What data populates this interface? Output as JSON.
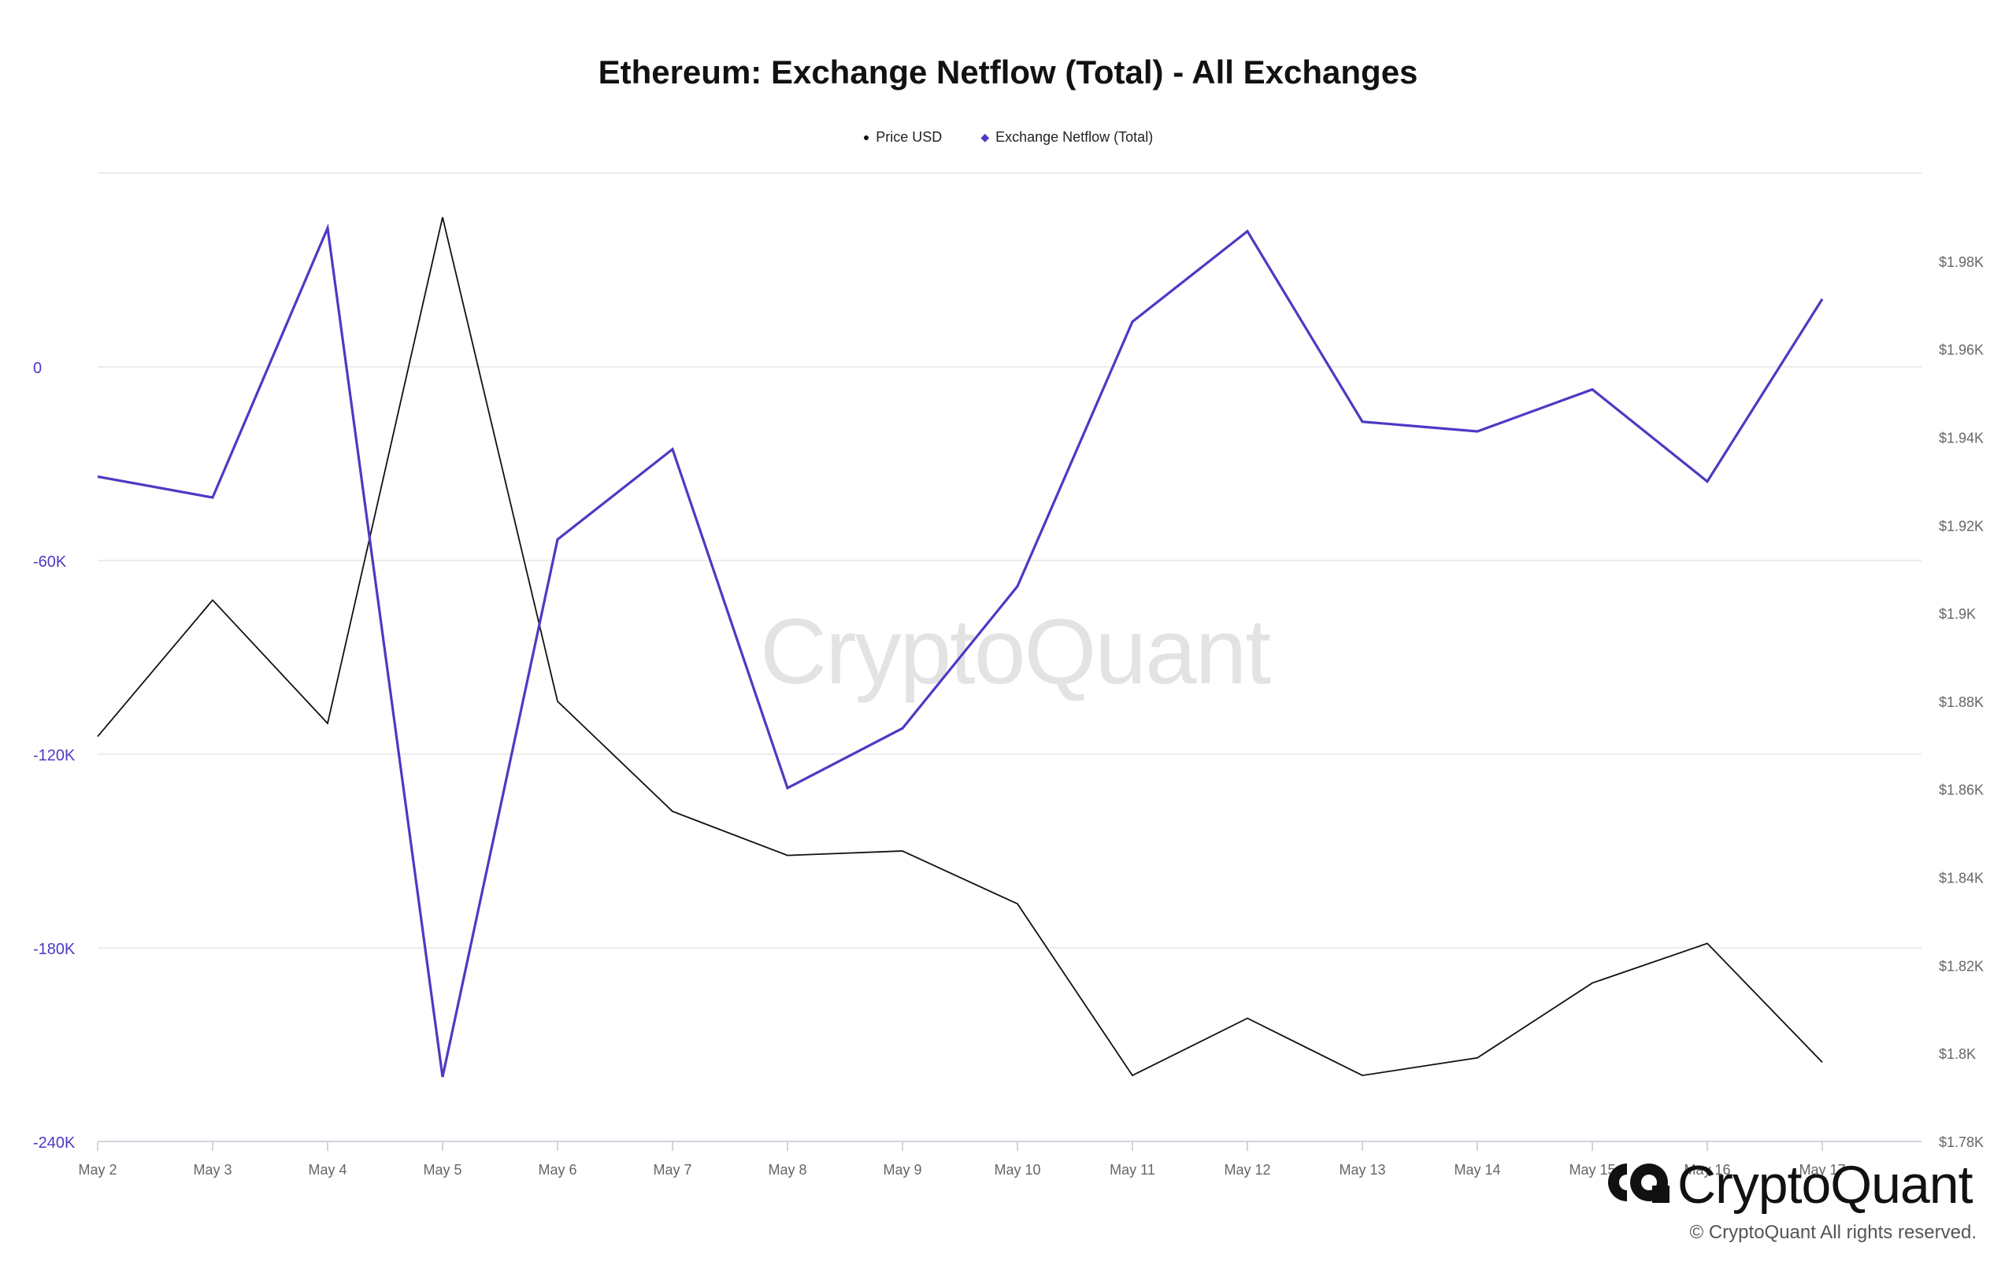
{
  "chart_data": {
    "type": "line",
    "title": "Ethereum: Exchange Netflow (Total) - All Exchanges",
    "categories": [
      "May 2",
      "May 3",
      "May 4",
      "May 5",
      "May 6",
      "May 7",
      "May 8",
      "May 9",
      "May 10",
      "May 11",
      "May 12",
      "May 13",
      "May 14",
      "May 15",
      "May 16",
      "May 17"
    ],
    "legend_position": "top-center",
    "grid": true,
    "series": [
      {
        "name": "Price USD",
        "marker": "●",
        "axis": "right",
        "color": "#111111",
        "values": [
          1872,
          1903,
          1875,
          1990,
          1880,
          1855,
          1845,
          1846,
          1834,
          1795,
          1808,
          1795,
          1799,
          1816,
          1825,
          1798
        ]
      },
      {
        "name": "Exchange Netflow (Total)",
        "marker": "◆",
        "axis": "left",
        "color": "#4b3ac4",
        "values": [
          -34000,
          -40500,
          43000,
          -220000,
          -53500,
          -25500,
          -130500,
          -112000,
          -68000,
          14000,
          42000,
          -17000,
          -20000,
          -7000,
          -35500,
          21000
        ]
      }
    ],
    "y_left": {
      "ylim": [
        -240000,
        60000
      ],
      "ticks": [
        0,
        -60000,
        -120000,
        -180000,
        -240000
      ],
      "tick_labels": [
        "0",
        "-60K",
        "-120K",
        "-180K",
        "-240K"
      ],
      "color": "#4b3ac4"
    },
    "y_right": {
      "ylim": [
        1780,
        2000
      ],
      "ticks": [
        1980,
        1960,
        1940,
        1920,
        1900,
        1880,
        1860,
        1840,
        1820,
        1800,
        1780
      ],
      "tick_labels": [
        "$1.98K",
        "$1.96K",
        "$1.94K",
        "$1.92K",
        "$1.9K",
        "$1.88K",
        "$1.86K",
        "$1.84K",
        "$1.82K",
        "$1.8K",
        "$1.78K"
      ],
      "color": "#666666"
    }
  },
  "watermark": "CryptoQuant",
  "brand": {
    "name": "CryptoQuant",
    "copyright": "© CryptoQuant All rights reserved."
  }
}
